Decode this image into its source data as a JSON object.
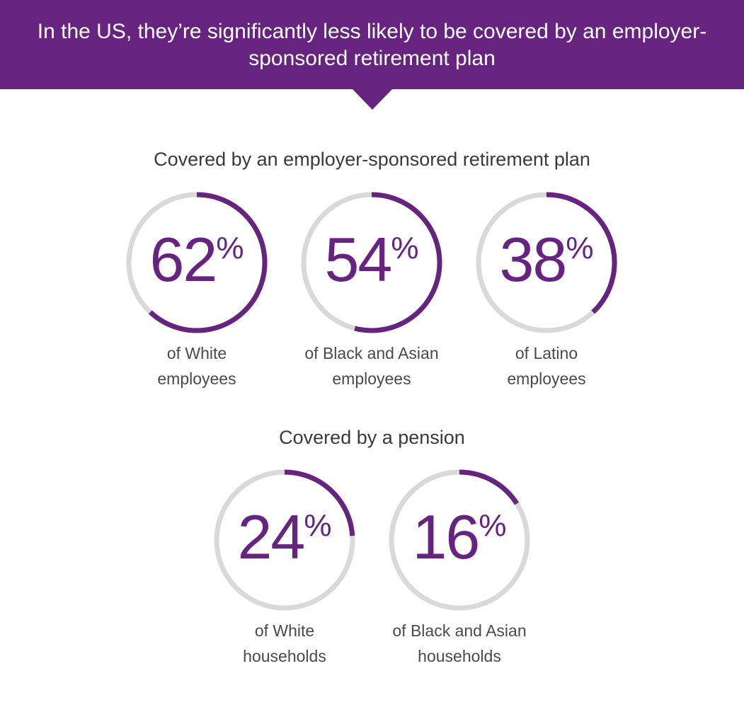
{
  "header": {
    "title": "In the US, they’re significantly less likely to be covered by an employer-sponsored retirement plan"
  },
  "colors": {
    "accent": "#66237f",
    "track": "#d9d9d9",
    "banner_text": "#ffffff",
    "body_text": "#4a4a4a"
  },
  "unit": "%",
  "chart_data": [
    {
      "type": "pie",
      "title": "Covered by an employer-sponsored retirement plan",
      "categories": [
        "of White employees",
        "of Black and Asian employees",
        "of Latino employees"
      ],
      "values": [
        62,
        54,
        38
      ],
      "items": [
        {
          "value": 62,
          "label_lines": [
            "of White",
            "employees"
          ]
        },
        {
          "value": 54,
          "label_lines": [
            "of Black and Asian",
            "employees"
          ]
        },
        {
          "value": 38,
          "label_lines": [
            "of Latino",
            "employees"
          ]
        }
      ]
    },
    {
      "type": "pie",
      "title": "Covered by a pension",
      "categories": [
        "of White households",
        "of Black and Asian households"
      ],
      "values": [
        24,
        16
      ],
      "items": [
        {
          "value": 24,
          "label_lines": [
            "of White",
            "households"
          ]
        },
        {
          "value": 16,
          "label_lines": [
            "of Black and Asian",
            "households"
          ]
        }
      ]
    }
  ]
}
